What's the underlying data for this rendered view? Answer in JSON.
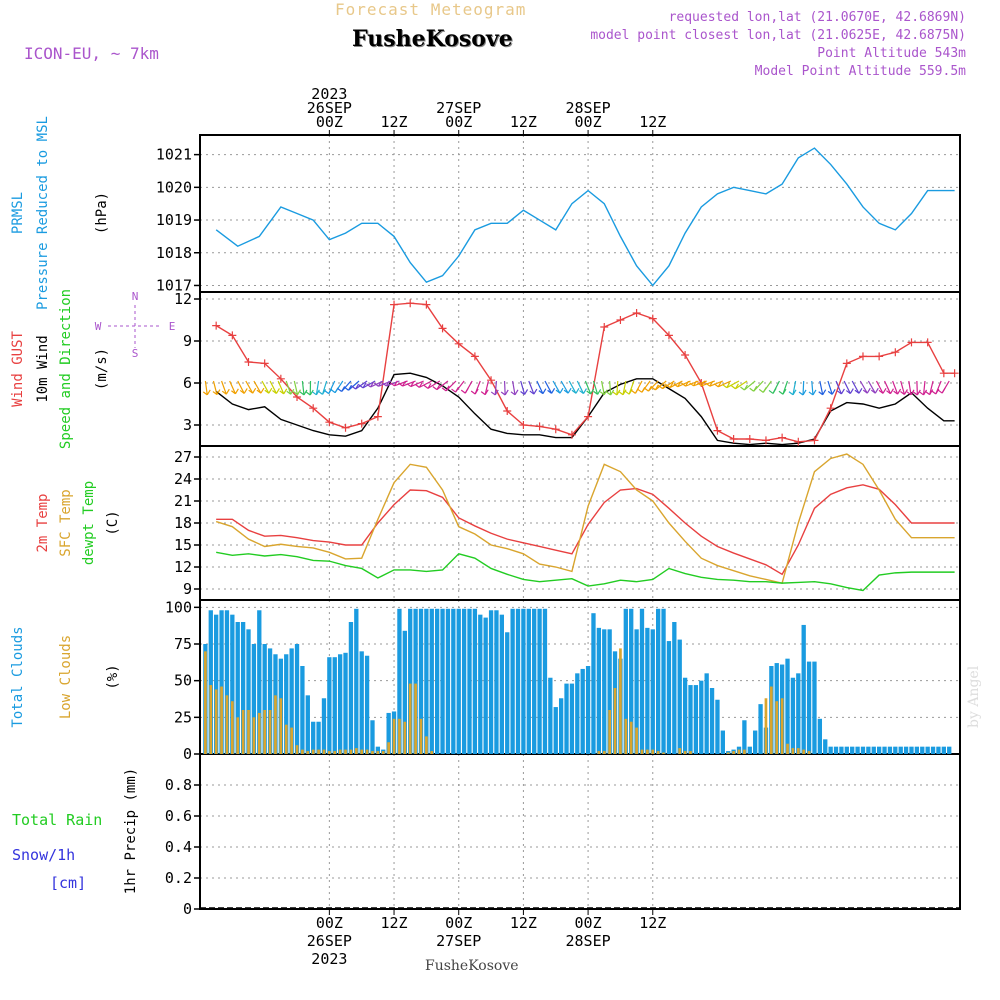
{
  "header": {
    "super_title": "Forecast Meteogram",
    "location": "FusheKosove",
    "model": "ICON-EU, ~ 7km",
    "requested": "requested lon,lat (21.0670E, 42.6869N)",
    "closest": "model point closest lon,lat (21.0625E, 42.6875N)",
    "altitude": "Point Altitude 543m",
    "model_altitude": "Model Point Altitude 559.5m",
    "footer_location": "FusheKosove",
    "watermark": "by Angel",
    "compass": {
      "n": "N",
      "s": "S",
      "w": "W",
      "e": "E"
    }
  },
  "colors": {
    "pressure": "#1a9be0",
    "gust": "#e84040",
    "wind": "#000000",
    "sfc": "#d9a52e",
    "dew": "#22cc22",
    "total_clouds": "#1a9be0",
    "low_clouds": "#d9a52e",
    "rain": "#22cc22",
    "snow": "#3333dd",
    "purple": "#aa55cc"
  },
  "chart_data": [
    {
      "type": "line",
      "panel": "pressure",
      "ylabels": [
        "PRMSL",
        "Pressure Reduced to MSL"
      ],
      "unit": "(hPa)",
      "ylim": [
        1016.8,
        1021.6
      ],
      "yticks": [
        1017,
        1018,
        1019,
        1020,
        1021
      ],
      "x_hours": [
        -21,
        -17,
        -13,
        -9,
        -6,
        -3,
        0,
        3,
        6,
        9,
        12,
        15,
        18,
        21,
        24,
        27,
        30,
        33,
        36,
        39,
        42,
        45,
        48,
        51,
        54,
        57,
        60,
        63,
        66,
        69,
        72,
        75,
        78,
        81,
        84,
        87,
        90,
        93,
        96,
        99,
        102,
        105,
        108,
        111,
        114,
        116
      ],
      "series": [
        {
          "values": [
            1018.7,
            1018.2,
            1018.5,
            1019.4,
            1019.2,
            1019.0,
            1018.4,
            1018.6,
            1018.9,
            1018.9,
            1018.5,
            1017.7,
            1017.1,
            1017.3,
            1017.9,
            1018.7,
            1018.9,
            1018.9,
            1019.3,
            1019.0,
            1018.7,
            1019.5,
            1019.9,
            1019.5,
            1018.5,
            1017.6,
            1017.0,
            1017.6,
            1018.6,
            1019.4,
            1019.8,
            1020.0,
            1019.9,
            1019.8,
            1020.1,
            1020.9,
            1021.2,
            1020.7,
            1020.1,
            1019.4,
            1018.9,
            1018.7,
            1019.2,
            1019.9,
            1019.9,
            1019.9
          ]
        }
      ]
    },
    {
      "type": "line",
      "panel": "wind",
      "ylabels": [
        "Wind GUST",
        "10m Wind",
        "Speed and Direction"
      ],
      "unit": "(m/s)",
      "ylim": [
        1.5,
        12.5
      ],
      "yticks": [
        3,
        6,
        9,
        12
      ],
      "x_hours": [
        -21,
        -18,
        -15,
        -12,
        -9,
        -6,
        -3,
        0,
        3,
        6,
        9,
        12,
        15,
        18,
        21,
        24,
        27,
        30,
        33,
        36,
        39,
        42,
        45,
        48,
        51,
        54,
        57,
        60,
        63,
        66,
        69,
        72,
        75,
        78,
        81,
        84,
        87,
        90,
        93,
        96,
        99,
        102,
        105,
        108,
        111,
        114,
        116
      ],
      "series": [
        {
          "name": "Wind GUST",
          "values": [
            10.1,
            9.4,
            7.5,
            7.4,
            6.3,
            5.0,
            4.2,
            3.2,
            2.8,
            3.1,
            3.6,
            11.6,
            11.7,
            11.6,
            9.9,
            8.8,
            7.9,
            6.2,
            4.0,
            3.0,
            2.9,
            2.7,
            2.3,
            3.6,
            10.0,
            10.5,
            11.0,
            10.6,
            9.4,
            8.0,
            6.0,
            2.6,
            2.0,
            2.0,
            1.9,
            2.1,
            1.8,
            1.9,
            4.2,
            7.4,
            7.9,
            7.9,
            8.2,
            8.9,
            8.9,
            6.7,
            6.7
          ]
        },
        {
          "name": "10m Wind",
          "values": [
            5.4,
            4.5,
            4.1,
            4.3,
            3.4,
            3.0,
            2.6,
            2.3,
            2.2,
            2.6,
            4.2,
            6.6,
            6.7,
            6.4,
            5.8,
            5.0,
            3.8,
            2.7,
            2.4,
            2.3,
            2.3,
            2.1,
            2.1,
            3.6,
            5.3,
            5.9,
            6.3,
            6.3,
            5.6,
            4.9,
            3.6,
            1.9,
            1.7,
            1.6,
            1.7,
            1.6,
            1.7,
            2.0,
            4.0,
            4.6,
            4.5,
            4.2,
            4.5,
            5.3,
            4.2,
            3.3,
            3.3
          ]
        }
      ]
    },
    {
      "type": "line",
      "panel": "temperature",
      "ylabels": [
        "2m Temp",
        "SFC Temp",
        "dewpt Temp"
      ],
      "unit": "(C)",
      "ylim": [
        7.5,
        28.5
      ],
      "yticks": [
        9,
        12,
        15,
        18,
        21,
        24,
        27
      ],
      "x_hours": [
        -21,
        -18,
        -15,
        -12,
        -9,
        -6,
        -3,
        0,
        3,
        6,
        9,
        12,
        15,
        18,
        21,
        24,
        27,
        30,
        33,
        36,
        39,
        42,
        45,
        48,
        51,
        54,
        57,
        60,
        63,
        66,
        69,
        72,
        75,
        78,
        81,
        84,
        87,
        90,
        93,
        96,
        99,
        102,
        105,
        108,
        111,
        114,
        116
      ],
      "series": [
        {
          "name": "2m Temp",
          "values": [
            18.5,
            18.5,
            17.0,
            16.2,
            16.3,
            16.0,
            15.6,
            15.4,
            15.0,
            15.0,
            18.0,
            20.5,
            22.5,
            22.4,
            21.5,
            18.7,
            17.6,
            16.6,
            15.8,
            15.3,
            14.8,
            14.3,
            13.8,
            17.8,
            20.8,
            22.5,
            22.7,
            21.9,
            20.0,
            18.0,
            16.2,
            14.8,
            13.9,
            13.1,
            12.3,
            11.0,
            15.0,
            20.0,
            21.9,
            22.8,
            23.2,
            22.6,
            20.5,
            18.0,
            18.0,
            18.0,
            18.0
          ]
        },
        {
          "name": "SFC Temp",
          "values": [
            18.2,
            17.5,
            15.8,
            14.8,
            15.1,
            14.8,
            14.6,
            14.0,
            13.1,
            13.2,
            18.5,
            23.5,
            26.0,
            25.6,
            22.5,
            17.5,
            16.5,
            15.0,
            14.5,
            13.8,
            12.4,
            12.0,
            11.4,
            20.3,
            26.0,
            25.0,
            22.5,
            21.0,
            18.0,
            15.5,
            13.2,
            12.2,
            11.5,
            10.8,
            10.3,
            9.8,
            18.0,
            25.0,
            26.8,
            27.4,
            26.0,
            22.5,
            18.5,
            16.0,
            16.0,
            16.0,
            16.0
          ]
        },
        {
          "name": "dewpt Temp",
          "values": [
            14.0,
            13.6,
            13.8,
            13.5,
            13.7,
            13.4,
            12.9,
            12.8,
            12.2,
            11.8,
            10.5,
            11.6,
            11.6,
            11.4,
            11.6,
            13.8,
            13.2,
            11.8,
            11.0,
            10.3,
            10.0,
            10.2,
            10.4,
            9.4,
            9.7,
            10.2,
            10.0,
            10.3,
            11.8,
            11.1,
            10.6,
            10.3,
            10.2,
            10.0,
            10.0,
            9.8,
            9.9,
            10.0,
            9.7,
            9.2,
            8.8,
            10.9,
            11.2,
            11.3,
            11.3,
            11.3,
            11.3
          ]
        }
      ]
    },
    {
      "type": "bar",
      "panel": "clouds",
      "ylabels": [
        "Total Clouds",
        "Low Clouds"
      ],
      "unit": "(%)",
      "ylim": [
        0,
        105
      ],
      "yticks": [
        0,
        25,
        50,
        75,
        100
      ],
      "bar_hours": [
        -23,
        -22,
        -21,
        -20,
        -19,
        -18,
        -17,
        -16,
        -15,
        -14,
        -13,
        -12,
        -11,
        -10,
        -9,
        -8,
        -7,
        -6,
        -5,
        -4,
        -3,
        -2,
        -1,
        0,
        1,
        2,
        3,
        4,
        5,
        6,
        7,
        8,
        9,
        10,
        11,
        12,
        13,
        14,
        15,
        16,
        17,
        18,
        19,
        20,
        21,
        22,
        23,
        24,
        25,
        26,
        27,
        28,
        29,
        30,
        31,
        32,
        33,
        34,
        35,
        36,
        37,
        38,
        39,
        40,
        41,
        42,
        43,
        44,
        45,
        46,
        47,
        48,
        49,
        50,
        51,
        52,
        53,
        54,
        55,
        56,
        57,
        58,
        59,
        60,
        61,
        62,
        63,
        64,
        65,
        66,
        67,
        68,
        69,
        70,
        71,
        72,
        73,
        74,
        75,
        76,
        77,
        78,
        79,
        80,
        81,
        82,
        83,
        84,
        85,
        86,
        87,
        88,
        89,
        90,
        91,
        92,
        93,
        94,
        95,
        96,
        97,
        98,
        99,
        100,
        101,
        102,
        103,
        104,
        105,
        106,
        107,
        108,
        109,
        110,
        111,
        112,
        113,
        114,
        115
      ],
      "series": [
        {
          "name": "Total Clouds",
          "values": [
            75,
            98,
            95,
            98,
            98,
            95,
            90,
            90,
            85,
            75,
            98,
            75,
            72,
            68,
            65,
            68,
            72,
            75,
            60,
            40,
            22,
            22,
            38,
            66,
            66,
            68,
            69,
            90,
            99,
            70,
            67,
            23,
            5,
            3,
            28,
            29,
            99,
            84,
            99,
            99,
            99,
            99,
            99,
            99,
            99,
            99,
            99,
            99,
            99,
            99,
            99,
            95,
            93,
            98,
            98,
            95,
            83,
            99,
            99,
            99,
            99,
            99,
            99,
            99,
            52,
            32,
            38,
            48,
            48,
            55,
            58,
            60,
            96,
            86,
            85,
            85,
            70,
            65,
            99,
            99,
            85,
            99,
            86,
            85,
            99,
            99,
            77,
            90,
            78,
            52,
            47,
            47,
            50,
            55,
            45,
            37,
            16,
            2,
            3,
            5,
            23,
            5,
            16,
            34,
            18,
            60,
            62,
            61,
            65,
            52,
            55,
            88,
            63,
            63,
            24,
            10,
            5,
            5,
            5,
            5,
            5,
            5,
            5,
            5,
            5,
            5,
            5,
            5,
            5,
            5,
            5,
            5,
            5,
            5,
            5,
            5,
            5,
            5,
            5
          ]
        },
        {
          "name": "Low Clouds",
          "values": [
            70,
            47,
            44,
            46,
            40,
            36,
            25,
            30,
            30,
            25,
            28,
            30,
            30,
            40,
            38,
            20,
            18,
            6,
            3,
            2,
            3,
            3,
            3,
            2,
            2,
            3,
            3,
            3,
            4,
            3,
            3,
            2,
            2,
            2,
            8,
            24,
            24,
            22,
            48,
            48,
            24,
            12,
            2,
            0,
            0,
            0,
            0,
            0,
            0,
            0,
            0,
            0,
            0,
            0,
            0,
            0,
            0,
            0,
            0,
            0,
            0,
            0,
            0,
            0,
            0,
            0,
            0,
            0,
            0,
            0,
            0,
            0,
            0,
            2,
            2,
            30,
            45,
            72,
            24,
            22,
            18,
            3,
            3,
            3,
            2,
            1,
            0,
            0,
            4,
            2,
            2,
            0,
            0,
            0,
            0,
            0,
            0,
            1,
            2,
            3,
            3,
            0,
            0,
            0,
            38,
            46,
            36,
            38,
            7,
            4,
            4,
            3,
            2,
            0,
            0,
            0,
            0,
            0,
            0,
            0,
            0,
            0,
            0,
            0,
            0,
            0,
            0,
            0,
            0,
            0,
            0,
            0,
            0,
            0,
            0,
            0,
            0,
            0,
            0
          ]
        }
      ]
    },
    {
      "type": "bar",
      "panel": "precip",
      "ylabels": [
        "Total  Rain",
        "Snow/1h",
        "[cm]"
      ],
      "unit": "1hr Precip (mm)",
      "ylim": [
        0,
        1.0
      ],
      "yticks": [
        0,
        0.2,
        0.4,
        0.6,
        0.8
      ],
      "series": [
        {
          "name": "Total Rain",
          "values": []
        },
        {
          "name": "Snow/1h",
          "values": []
        }
      ]
    }
  ],
  "time_axis": {
    "hour_range": [
      -24,
      117
    ],
    "top_labels": [
      {
        "h": 0,
        "lines": [
          "2023",
          "26SEP",
          "00Z"
        ]
      },
      {
        "h": 12,
        "lines": [
          "12Z"
        ]
      },
      {
        "h": 24,
        "lines": [
          "27SEP",
          "00Z"
        ]
      },
      {
        "h": 36,
        "lines": [
          "12Z"
        ]
      },
      {
        "h": 48,
        "lines": [
          "28SEP",
          "00Z"
        ]
      },
      {
        "h": 60,
        "lines": [
          "12Z"
        ]
      }
    ],
    "bottom_labels": [
      {
        "h": 0,
        "lines": [
          "00Z",
          "26SEP",
          "2023"
        ]
      },
      {
        "h": 12,
        "lines": [
          "12Z"
        ]
      },
      {
        "h": 24,
        "lines": [
          "00Z",
          "27SEP"
        ]
      },
      {
        "h": 36,
        "lines": [
          "12Z"
        ]
      },
      {
        "h": 48,
        "lines": [
          "00Z",
          "28SEP"
        ]
      },
      {
        "h": 60,
        "lines": [
          "12Z"
        ]
      }
    ]
  }
}
